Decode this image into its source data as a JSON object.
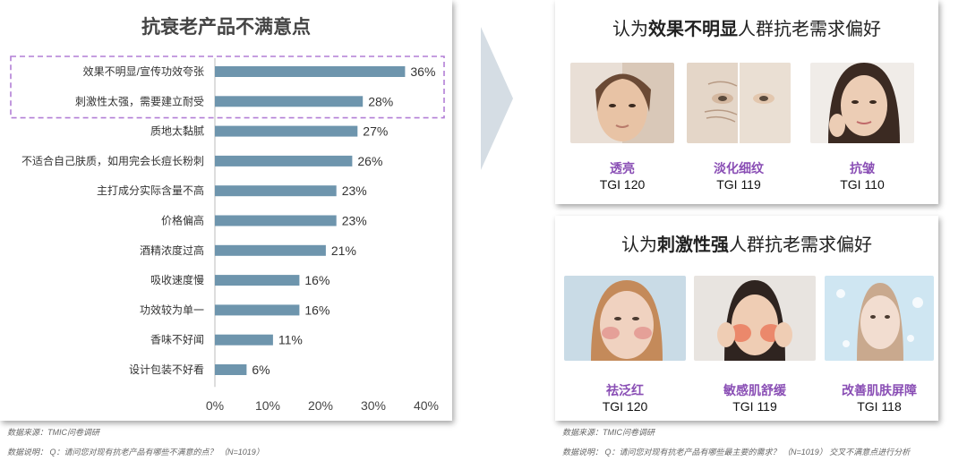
{
  "left_panel": {
    "title": "抗衰老产品不满意点"
  },
  "chart_data": {
    "type": "bar",
    "orientation": "horizontal",
    "title": "抗衰老产品不满意点",
    "categories": [
      "效果不明显/宣传功效夸张",
      "刺激性太强，需要建立耐受",
      "质地太黏腻",
      "不适合自己肤质，如用完会长痘长粉刺",
      "主打成分实际含量不高",
      "价格偏高",
      "酒精浓度过高",
      "吸收速度慢",
      "功效较为单一",
      "香味不好闻",
      "设计包装不好看"
    ],
    "values": [
      36,
      28,
      27,
      26,
      23,
      23,
      21,
      16,
      16,
      11,
      6
    ],
    "value_labels": [
      "36%",
      "28%",
      "27%",
      "26%",
      "23%",
      "23%",
      "21%",
      "16%",
      "16%",
      "11%",
      "6%"
    ],
    "xticks": [
      "0%",
      "10%",
      "20%",
      "30%",
      "40%"
    ],
    "xlim": [
      0,
      40
    ],
    "highlighted_categories": 2,
    "bar_color": "#6e95ad",
    "highlight_border_color": "#b27fd6"
  },
  "notes": {
    "left_source": "数据来源：TMIC问卷调研",
    "left_desc": "数据说明： Q：请问您对现有抗老产品有哪些不满意的点？ （N=1019）",
    "right_source": "数据来源：TMIC问卷调研",
    "right_desc": "数据说明： Q：请问您对现有抗老产品有哪些最主要的需求？ （N=1019） 交叉不满意点进行分析"
  },
  "panel_top": {
    "title_prefix": "认为",
    "title_bold": "效果不明显",
    "title_suffix": "人群抗老需求偏好",
    "items": [
      {
        "label": "透亮",
        "tgi": "TGI 120",
        "photo": "face-brightening-photo"
      },
      {
        "label": "淡化细纹",
        "tgi": "TGI 119",
        "photo": "face-fine-lines-photo"
      },
      {
        "label": "抗皱",
        "tgi": "TGI 110",
        "photo": "face-anti-wrinkle-photo"
      }
    ]
  },
  "panel_bottom": {
    "title_prefix": "认为",
    "title_bold": "刺激性强",
    "title_suffix": "人群抗老需求偏好",
    "items": [
      {
        "label": "祛泛红",
        "tgi": "TGI 120",
        "photo": "face-redness-photo"
      },
      {
        "label": "敏感肌舒缓",
        "tgi": "TGI 119",
        "photo": "face-sensitive-skin-photo"
      },
      {
        "label": "改善肌肤屏障",
        "tgi": "TGI 118",
        "photo": "face-skin-barrier-photo"
      }
    ]
  },
  "colors": {
    "label_purple": "#8a4fb5",
    "arrow": "#d5dde4"
  }
}
